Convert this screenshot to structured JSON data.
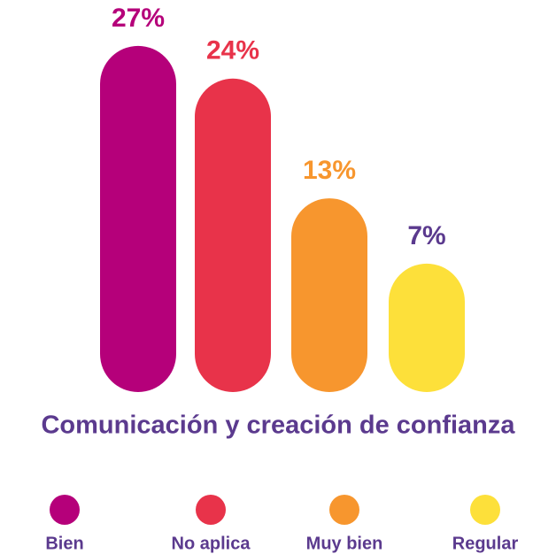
{
  "chart_data": {
    "type": "bar",
    "title": "Comunicación y creación de confianza",
    "categories": [
      "Bien",
      "No aplica",
      "Muy bien",
      "Regular"
    ],
    "values": [
      27,
      24,
      13,
      7
    ],
    "value_labels": [
      "27%",
      "24%",
      "13%",
      "7%"
    ],
    "colors": [
      "#b5007a",
      "#e8334a",
      "#f7962e",
      "#fde03a"
    ],
    "value_label_colors": [
      "#b5007a",
      "#e8334a",
      "#f7962e",
      "#5b3a8e"
    ],
    "legend": "bottom"
  }
}
